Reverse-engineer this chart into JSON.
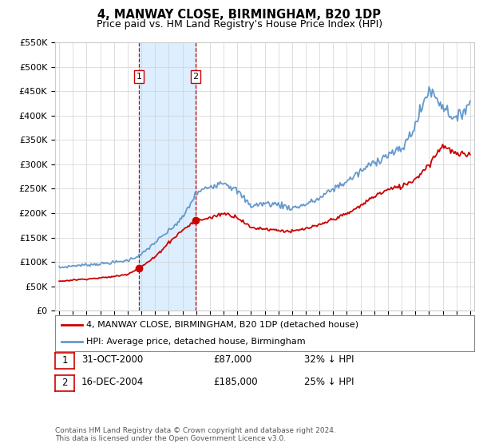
{
  "title": "4, MANWAY CLOSE, BIRMINGHAM, B20 1DP",
  "subtitle": "Price paid vs. HM Land Registry's House Price Index (HPI)",
  "title_fontsize": 10.5,
  "subtitle_fontsize": 9,
  "ylim": [
    0,
    550000
  ],
  "yticks": [
    0,
    50000,
    100000,
    150000,
    200000,
    250000,
    300000,
    350000,
    400000,
    450000,
    500000,
    550000
  ],
  "ytick_labels": [
    "£0",
    "£50K",
    "£100K",
    "£150K",
    "£200K",
    "£250K",
    "£300K",
    "£350K",
    "£400K",
    "£450K",
    "£500K",
    "£550K"
  ],
  "xlim_start": 1994.7,
  "xlim_end": 2025.3,
  "background_color": "#ffffff",
  "grid_color": "#d0d0d0",
  "sale1_x": 2000.83,
  "sale1_y": 87000,
  "sale2_x": 2004.96,
  "sale2_y": 185000,
  "red_line_color": "#cc0000",
  "blue_line_color": "#6699cc",
  "shade_color": "#ddeeff",
  "vline_color": "#cc0000",
  "legend_label_red": "4, MANWAY CLOSE, BIRMINGHAM, B20 1DP (detached house)",
  "legend_label_blue": "HPI: Average price, detached house, Birmingham",
  "footer_text": "Contains HM Land Registry data © Crown copyright and database right 2024.\nThis data is licensed under the Open Government Licence v3.0.",
  "table_row1": [
    "1",
    "31-OCT-2000",
    "£87,000",
    "32% ↓ HPI"
  ],
  "table_row2": [
    "2",
    "16-DEC-2004",
    "£185,000",
    "25% ↓ HPI"
  ],
  "hpi_years": [
    1995,
    1996,
    1997,
    1998,
    1999,
    2000,
    2001,
    2002,
    2003,
    2004,
    2005,
    2006,
    2007,
    2008,
    2009,
    2010,
    2011,
    2012,
    2013,
    2014,
    2015,
    2016,
    2017,
    2018,
    2019,
    2020,
    2021,
    2022,
    2023,
    2024,
    2025
  ],
  "hpi_values": [
    88000,
    92000,
    94000,
    96000,
    99000,
    103000,
    115000,
    140000,
    163000,
    190000,
    240000,
    255000,
    265000,
    245000,
    215000,
    220000,
    218000,
    210000,
    218000,
    230000,
    250000,
    265000,
    285000,
    305000,
    320000,
    330000,
    380000,
    455000,
    420000,
    390000,
    430000
  ],
  "red_years": [
    1995,
    1996,
    1997,
    1998,
    1999,
    2000,
    2001,
    2002,
    2003,
    2004,
    2005,
    2006,
    2007,
    2008,
    2009,
    2010,
    2011,
    2012,
    2013,
    2014,
    2015,
    2016,
    2017,
    2018,
    2019,
    2020,
    2021,
    2022,
    2023,
    2024,
    2025
  ],
  "red_values": [
    60000,
    63000,
    65000,
    67000,
    70000,
    75000,
    90000,
    110000,
    140000,
    165000,
    185000,
    190000,
    200000,
    192000,
    170000,
    168000,
    165000,
    162000,
    168000,
    175000,
    188000,
    198000,
    215000,
    235000,
    248000,
    255000,
    270000,
    300000,
    340000,
    320000,
    320000
  ]
}
